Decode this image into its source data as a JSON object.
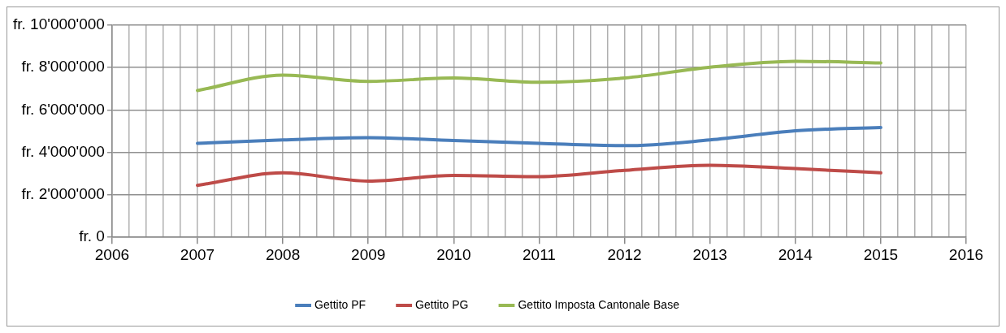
{
  "chart_data": {
    "type": "line",
    "x": [
      2007,
      2008,
      2009,
      2010,
      2011,
      2012,
      2013,
      2014,
      2015
    ],
    "series": [
      {
        "name": "Gettito PF",
        "color": "#4a7ebb",
        "values": [
          4430000,
          4590000,
          4700000,
          4560000,
          4430000,
          4320000,
          4590000,
          5020000,
          5180000
        ]
      },
      {
        "name": "Gettito PG",
        "color": "#be4b48",
        "values": [
          2450000,
          3040000,
          2650000,
          2920000,
          2860000,
          3160000,
          3400000,
          3240000,
          3040000
        ]
      },
      {
        "name": "Gettito Imposta Cantonale Base",
        "color": "#98b954",
        "values": [
          6920000,
          7650000,
          7350000,
          7510000,
          7310000,
          7510000,
          8020000,
          8300000,
          8220000
        ]
      }
    ],
    "xlim": [
      2006,
      2016
    ],
    "xticks": [
      2006,
      {
        "value": 2006.2,
        "label": null
      },
      {
        "value": 2006.4,
        "label": null
      },
      {
        "value": 2006.6,
        "label": null
      },
      {
        "value": 2006.8,
        "label": null
      },
      2007,
      {
        "value": 2007.2,
        "label": null
      },
      {
        "value": 2007.4,
        "label": null
      },
      {
        "value": 2007.6,
        "label": null
      },
      {
        "value": 2007.8,
        "label": null
      },
      2008,
      {
        "value": 2008.2,
        "label": null
      },
      {
        "value": 2008.4,
        "label": null
      },
      {
        "value": 2008.6,
        "label": null
      },
      {
        "value": 2008.8,
        "label": null
      },
      2009,
      {
        "value": 2009.2,
        "label": null
      },
      {
        "value": 2009.4,
        "label": null
      },
      {
        "value": 2009.6,
        "label": null
      },
      {
        "value": 2009.8,
        "label": null
      },
      2010,
      {
        "value": 2010.2,
        "label": null
      },
      {
        "value": 2010.4,
        "label": null
      },
      {
        "value": 2010.6,
        "label": null
      },
      {
        "value": 2010.8,
        "label": null
      },
      2011,
      {
        "value": 2011.2,
        "label": null
      },
      {
        "value": 2011.4,
        "label": null
      },
      {
        "value": 2011.6,
        "label": null
      },
      {
        "value": 2011.8,
        "label": null
      },
      2012,
      {
        "value": 2012.2,
        "label": null
      },
      {
        "value": 2012.4,
        "label": null
      },
      {
        "value": 2012.6,
        "label": null
      },
      {
        "value": 2012.8,
        "label": null
      },
      2013,
      {
        "value": 2013.2,
        "label": null
      },
      {
        "value": 2013.4,
        "label": null
      },
      {
        "value": 2013.6,
        "label": null
      },
      {
        "value": 2013.8,
        "label": null
      },
      2014,
      {
        "value": 2014.2,
        "label": null
      },
      {
        "value": 2014.4,
        "label": null
      },
      {
        "value": 2014.6,
        "label": null
      },
      {
        "value": 2014.8,
        "label": null
      },
      2015,
      {
        "value": 2015.2,
        "label": null
      },
      {
        "value": 2015.4,
        "label": null
      },
      {
        "value": 2015.6,
        "label": null
      },
      {
        "value": 2015.8,
        "label": null
      },
      2016
    ],
    "ylim": [
      0,
      10000000
    ],
    "yticks": [
      {
        "value": 0,
        "label": "fr. 0"
      },
      {
        "value": 2000000,
        "label": "fr. 2'000'000"
      },
      {
        "value": 4000000,
        "label": "fr. 4'000'000"
      },
      {
        "value": 6000000,
        "label": "fr. 6'000'000"
      },
      {
        "value": 8000000,
        "label": "fr. 8'000'000"
      },
      {
        "value": 10000000,
        "label": "fr. 10'000'000"
      }
    ],
    "grid": true,
    "legend": "bottom",
    "marker": "none",
    "line_style": "solid"
  }
}
